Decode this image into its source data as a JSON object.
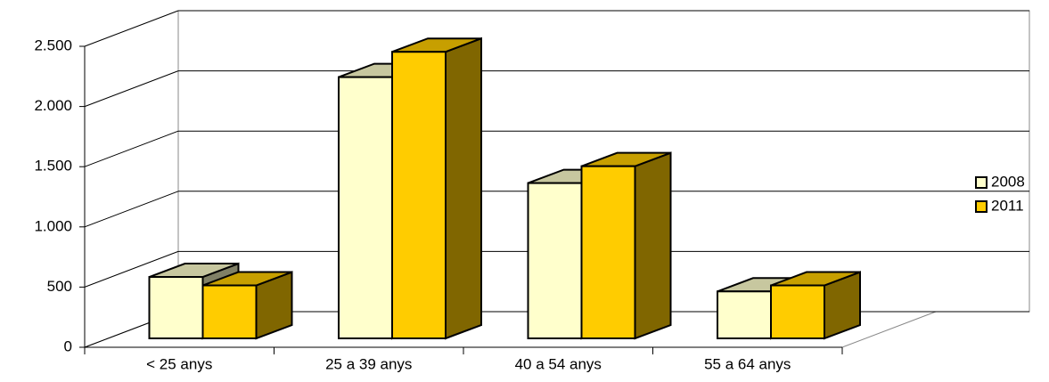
{
  "chart_data": {
    "type": "bar3d",
    "categories": [
      "< 25 anys",
      "25 a 39 anys",
      "40 a 54 anys",
      "55 a 64 anys"
    ],
    "series": [
      {
        "name": "2008",
        "color": "#ffffcc",
        "values": [
          510,
          2170,
          1290,
          390
        ]
      },
      {
        "name": "2011",
        "color": "#ffcc00",
        "values": [
          440,
          2380,
          1430,
          440
        ]
      }
    ],
    "ylim": [
      0,
      2500
    ],
    "yticks": [
      0,
      500,
      {
        "value": 1000,
        "label": "1.000"
      },
      {
        "value": 1500,
        "label": "1.500"
      },
      {
        "value": 2000,
        "label": "2.000"
      },
      {
        "value": 2500,
        "label": "2.500"
      }
    ],
    "grid": true,
    "legend": "right"
  }
}
